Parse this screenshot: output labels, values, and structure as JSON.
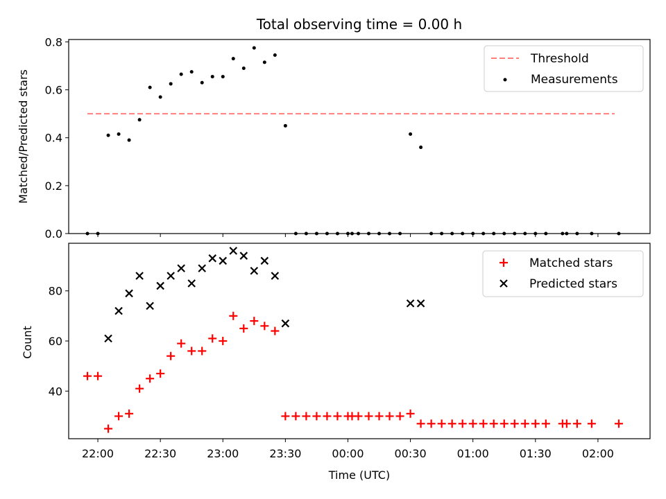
{
  "chart_data": [
    {
      "type": "scatter",
      "title": "Total observing time = 0.00 h",
      "xlabel": "",
      "ylabel": "Matched/Predicted stars",
      "ylim": [
        0,
        0.81
      ],
      "xlim": [
        "21:46",
        "02:25"
      ],
      "yticks": [
        0.0,
        0.2,
        0.4,
        0.6,
        0.8
      ],
      "ytick_labels": [
        "0.0",
        "0.2",
        "0.4",
        "0.6",
        "0.8"
      ],
      "legend_position": "top-right",
      "grid": false,
      "series": [
        {
          "name": "Threshold",
          "style": "dashed-line",
          "color": "#ff7f7f",
          "x": [
            "21:55",
            "02:08"
          ],
          "values": [
            0.5,
            0.5
          ]
        },
        {
          "name": "Measurements",
          "style": "dot",
          "color": "#000000",
          "x": [
            "21:55",
            "22:00",
            "22:05",
            "22:10",
            "22:15",
            "22:20",
            "22:25",
            "22:30",
            "22:35",
            "22:40",
            "22:45",
            "22:50",
            "22:55",
            "23:00",
            "23:05",
            "23:10",
            "23:15",
            "23:20",
            "23:25",
            "23:30",
            "23:35",
            "23:40",
            "23:45",
            "23:50",
            "23:55",
            "24:00",
            "24:02",
            "24:05",
            "24:10",
            "24:15",
            "24:20",
            "24:25",
            "24:30",
            "24:35",
            "24:40",
            "24:45",
            "24:50",
            "24:55",
            "25:00",
            "25:05",
            "25:10",
            "25:15",
            "25:20",
            "25:25",
            "25:30",
            "25:35",
            "25:43",
            "25:45",
            "25:50",
            "25:57",
            "26:10"
          ],
          "values": [
            0.0,
            0.0,
            0.41,
            0.415,
            0.39,
            0.475,
            0.61,
            0.57,
            0.625,
            0.665,
            0.675,
            0.63,
            0.655,
            0.655,
            0.73,
            0.69,
            0.775,
            0.715,
            0.745,
            0.45,
            0.0,
            0.0,
            0.0,
            0.0,
            0.0,
            0.0,
            0.0,
            0.0,
            0.0,
            0.0,
            0.0,
            0.0,
            0.415,
            0.36,
            0.0,
            0.0,
            0.0,
            0.0,
            0.0,
            0.0,
            0.0,
            0.0,
            0.0,
            0.0,
            0.0,
            0.0,
            0.0,
            0.0,
            0.0,
            0.0,
            0.0
          ]
        }
      ]
    },
    {
      "type": "scatter",
      "title": "",
      "xlabel": "Time (UTC)",
      "ylabel": "Count",
      "ylim": [
        21,
        99
      ],
      "xlim": [
        "21:46",
        "02:25"
      ],
      "xticks": [
        "22:00",
        "22:30",
        "23:00",
        "23:30",
        "00:00",
        "00:30",
        "01:00",
        "01:30",
        "02:00"
      ],
      "yticks": [
        40,
        60,
        80
      ],
      "ytick_labels": [
        "40",
        "60",
        "80"
      ],
      "legend_position": "top-right",
      "grid": false,
      "series": [
        {
          "name": "Matched stars",
          "marker": "plus",
          "color": "#ff0000",
          "x": [
            "21:55",
            "22:00",
            "22:05",
            "22:10",
            "22:15",
            "22:20",
            "22:25",
            "22:30",
            "22:35",
            "22:40",
            "22:45",
            "22:50",
            "22:55",
            "23:00",
            "23:05",
            "23:10",
            "23:15",
            "23:20",
            "23:25",
            "23:30",
            "23:35",
            "23:40",
            "23:45",
            "23:50",
            "23:55",
            "24:00",
            "24:02",
            "24:05",
            "24:10",
            "24:15",
            "24:20",
            "24:25",
            "24:30",
            "24:35",
            "24:40",
            "24:45",
            "24:50",
            "24:55",
            "25:00",
            "25:05",
            "25:10",
            "25:15",
            "25:20",
            "25:25",
            "25:30",
            "25:35",
            "25:43",
            "25:45",
            "25:50",
            "25:57",
            "26:10"
          ],
          "values": [
            46,
            46,
            25,
            30,
            31,
            41,
            45,
            47,
            54,
            59,
            56,
            56,
            61,
            60,
            70,
            65,
            68,
            66,
            64,
            30,
            30,
            30,
            30,
            30,
            30,
            30,
            30,
            30,
            30,
            30,
            30,
            30,
            31,
            27,
            27,
            27,
            27,
            27,
            27,
            27,
            27,
            27,
            27,
            27,
            27,
            27,
            27,
            27,
            27,
            27,
            27
          ]
        },
        {
          "name": "Predicted stars",
          "marker": "x",
          "color": "#000000",
          "x": [
            "22:05",
            "22:10",
            "22:15",
            "22:20",
            "22:25",
            "22:30",
            "22:35",
            "22:40",
            "22:45",
            "22:50",
            "22:55",
            "23:00",
            "23:05",
            "23:10",
            "23:15",
            "23:20",
            "23:25",
            "23:30",
            "24:30",
            "24:35"
          ],
          "values": [
            61,
            72,
            79,
            86,
            74,
            82,
            86,
            89,
            83,
            89,
            93,
            92,
            96,
            94,
            88,
            92,
            86,
            67,
            75,
            75
          ]
        }
      ]
    }
  ]
}
